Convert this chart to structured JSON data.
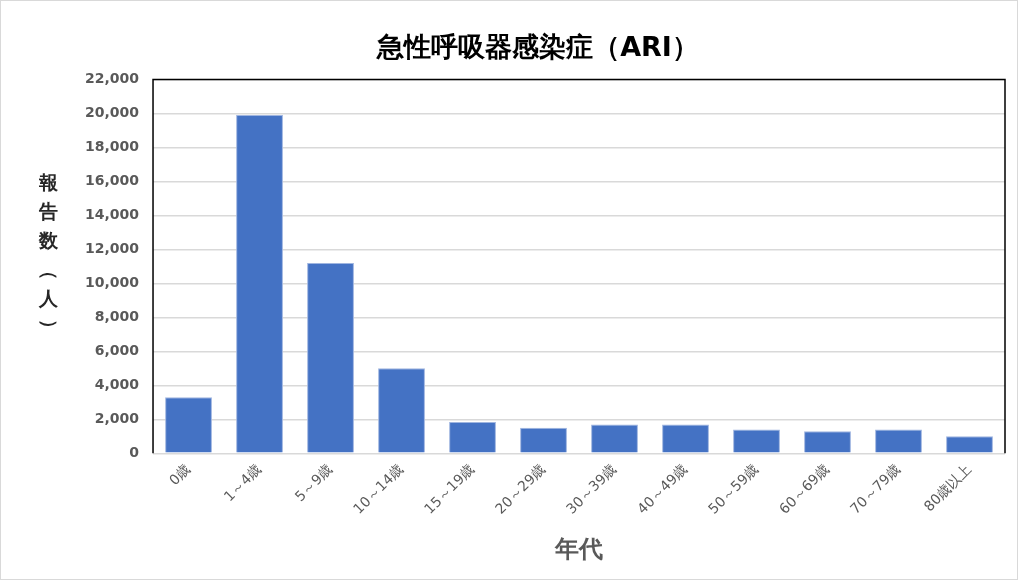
{
  "chart_data": {
    "type": "bar",
    "title": "急性呼吸器感染症（ARI）",
    "xlabel": "年代",
    "ylabel": "報告数（人）",
    "categories": [
      "0歳",
      "1～4歳",
      "5～9歳",
      "10～14歳",
      "15～19歳",
      "20～29歳",
      "30～39歳",
      "40～49歳",
      "50～59歳",
      "60～69歳",
      "70～79歳",
      "80歳以上"
    ],
    "values": [
      3300,
      19900,
      11200,
      5000,
      1850,
      1500,
      1700,
      1700,
      1400,
      1300,
      1400,
      1000
    ],
    "color": "#4472c4",
    "ylim": [
      0,
      22000
    ],
    "yticks": [
      0,
      {
        "value": 2000,
        "label": "2,000"
      },
      {
        "value": 4000,
        "label": "4,000"
      },
      {
        "value": 6000,
        "label": "6,000"
      },
      {
        "value": 8000,
        "label": "8,000"
      },
      {
        "value": 10000,
        "label": "10,000"
      },
      {
        "value": 12000,
        "label": "12,000"
      },
      {
        "value": 14000,
        "label": "14,000"
      },
      {
        "value": 16000,
        "label": "16,000"
      },
      {
        "value": 18000,
        "label": "18,000"
      },
      {
        "value": 20000,
        "label": "20,000"
      },
      {
        "value": 22000,
        "label": "22,000"
      }
    ],
    "grid": "y",
    "legend": false
  }
}
